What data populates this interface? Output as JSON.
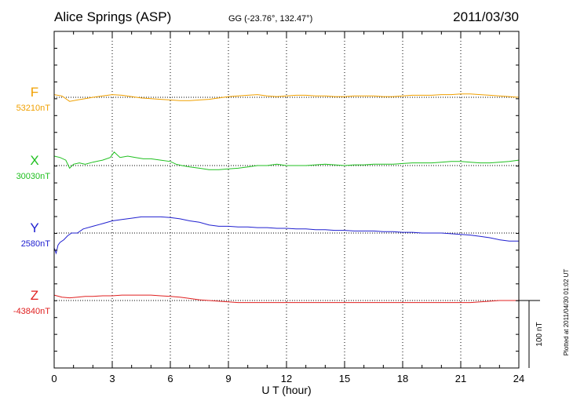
{
  "header": {
    "station": "Alice Springs (ASP)",
    "coords": "GG (-23.76°, 132.47°)",
    "date": "2011/03/30"
  },
  "footer_note": "Plotted at 2011/04/30 01:02 UT",
  "scale_label": "100 nT",
  "chart_data": {
    "type": "line",
    "xlabel": "U T (hour)",
    "xlim": [
      0,
      24
    ],
    "xticks": [
      "0",
      "3",
      "6",
      "9",
      "12",
      "15",
      "18",
      "21",
      "24"
    ],
    "grid": true,
    "scale_bar_nT": 100,
    "series": [
      {
        "name": "F",
        "baseline_label": "53210nT",
        "color": "#f0a000",
        "baseline_nT": 53210,
        "x": [
          0,
          0.4,
          0.8,
          1.2,
          1.6,
          2,
          2.5,
          3,
          3.5,
          4,
          4.5,
          5,
          5.5,
          6,
          6.5,
          7,
          7.5,
          8,
          8.5,
          9,
          9.5,
          10,
          10.5,
          11,
          11.5,
          12,
          12.5,
          13,
          13.5,
          14,
          14.5,
          15,
          15.5,
          16,
          16.5,
          17,
          17.5,
          18,
          18.5,
          19,
          19.5,
          20,
          20.5,
          21,
          21.5,
          22,
          22.5,
          23,
          23.5,
          24
        ],
        "values": [
          4,
          2,
          -6,
          -4,
          -2,
          0,
          2,
          4,
          3,
          1,
          -1,
          -2,
          -3,
          -4,
          -5,
          -5,
          -4,
          -3,
          -1,
          1,
          2,
          3,
          4,
          2,
          1,
          2,
          3,
          3,
          2,
          2,
          1,
          1,
          2,
          2,
          2,
          1,
          1,
          2,
          3,
          3,
          3,
          4,
          4,
          5,
          5,
          4,
          3,
          2,
          1,
          0
        ]
      },
      {
        "name": "X",
        "baseline_label": "30030nT",
        "color": "#20c020",
        "baseline_nT": 30030,
        "x": [
          0,
          0.3,
          0.6,
          0.8,
          1,
          1.3,
          1.6,
          2,
          2.5,
          2.9,
          3.1,
          3.4,
          3.8,
          4.2,
          4.6,
          5,
          5.5,
          6,
          6.3,
          6.6,
          7,
          7.5,
          8,
          8.5,
          9,
          9.5,
          10,
          10.5,
          11,
          11.5,
          12,
          12.5,
          13,
          13.5,
          14,
          14.5,
          15,
          15.5,
          16,
          16.5,
          17,
          17.5,
          18,
          18.5,
          19,
          19.5,
          20,
          20.5,
          21,
          21.5,
          22,
          22.5,
          23,
          23.5,
          24
        ],
        "values": [
          14,
          12,
          8,
          -4,
          2,
          4,
          2,
          5,
          8,
          12,
          20,
          12,
          14,
          12,
          10,
          10,
          8,
          6,
          2,
          0,
          -2,
          -4,
          -6,
          -6,
          -5,
          -4,
          -2,
          0,
          0,
          2,
          0,
          0,
          0,
          1,
          2,
          1,
          0,
          1,
          1,
          2,
          2,
          2,
          3,
          4,
          4,
          4,
          5,
          6,
          6,
          5,
          4,
          4,
          5,
          6,
          8
        ]
      },
      {
        "name": "Y",
        "baseline_label": "2580nT",
        "color": "#2020d0",
        "baseline_nT": 2580,
        "x": [
          0,
          0.1,
          0.2,
          0.3,
          0.5,
          0.7,
          0.9,
          1.2,
          1.5,
          2,
          2.5,
          3,
          3.5,
          4,
          4.5,
          5,
          5.5,
          6,
          6.5,
          7,
          7.5,
          8,
          8.5,
          9,
          9.5,
          10,
          10.5,
          11,
          11.5,
          12,
          12.5,
          13,
          13.5,
          14,
          14.5,
          15,
          15.5,
          16,
          16.5,
          17,
          17.5,
          18,
          18.5,
          19,
          19.5,
          20,
          20.5,
          21,
          21.5,
          22,
          22.5,
          23,
          23.5,
          24
        ],
        "values": [
          -22,
          -30,
          -18,
          -14,
          -10,
          -4,
          0,
          0,
          6,
          10,
          14,
          18,
          20,
          22,
          24,
          24,
          24,
          23,
          21,
          18,
          16,
          12,
          10,
          10,
          9,
          9,
          8,
          8,
          7,
          7,
          6,
          6,
          5,
          5,
          4,
          4,
          3,
          3,
          3,
          2,
          2,
          1,
          1,
          0,
          0,
          0,
          -1,
          -2,
          -3,
          -5,
          -7,
          -10,
          -12,
          -12
        ]
      },
      {
        "name": "Z",
        "baseline_label": "-43840nT",
        "color": "#e02020",
        "baseline_nT": -43840,
        "x": [
          0,
          0.4,
          0.8,
          1.2,
          1.6,
          2,
          2.5,
          3,
          3.5,
          4,
          4.5,
          5,
          5.5,
          6,
          6.5,
          7,
          7.5,
          8,
          8.5,
          9,
          9.5,
          10,
          11,
          12,
          13,
          14,
          15,
          16,
          17,
          18,
          19,
          20,
          21,
          21.5,
          22,
          22.5,
          23,
          23.5,
          24
        ],
        "values": [
          8,
          5,
          4,
          5,
          6,
          6,
          7,
          7,
          8,
          8,
          8,
          8,
          7,
          6,
          5,
          3,
          1,
          0,
          -1,
          -2,
          -3,
          -3,
          -3,
          -3,
          -3,
          -3,
          -3,
          -3,
          -3,
          -3,
          -3,
          -3,
          -3,
          -3,
          -2,
          -1,
          0,
          0,
          0
        ]
      }
    ]
  }
}
